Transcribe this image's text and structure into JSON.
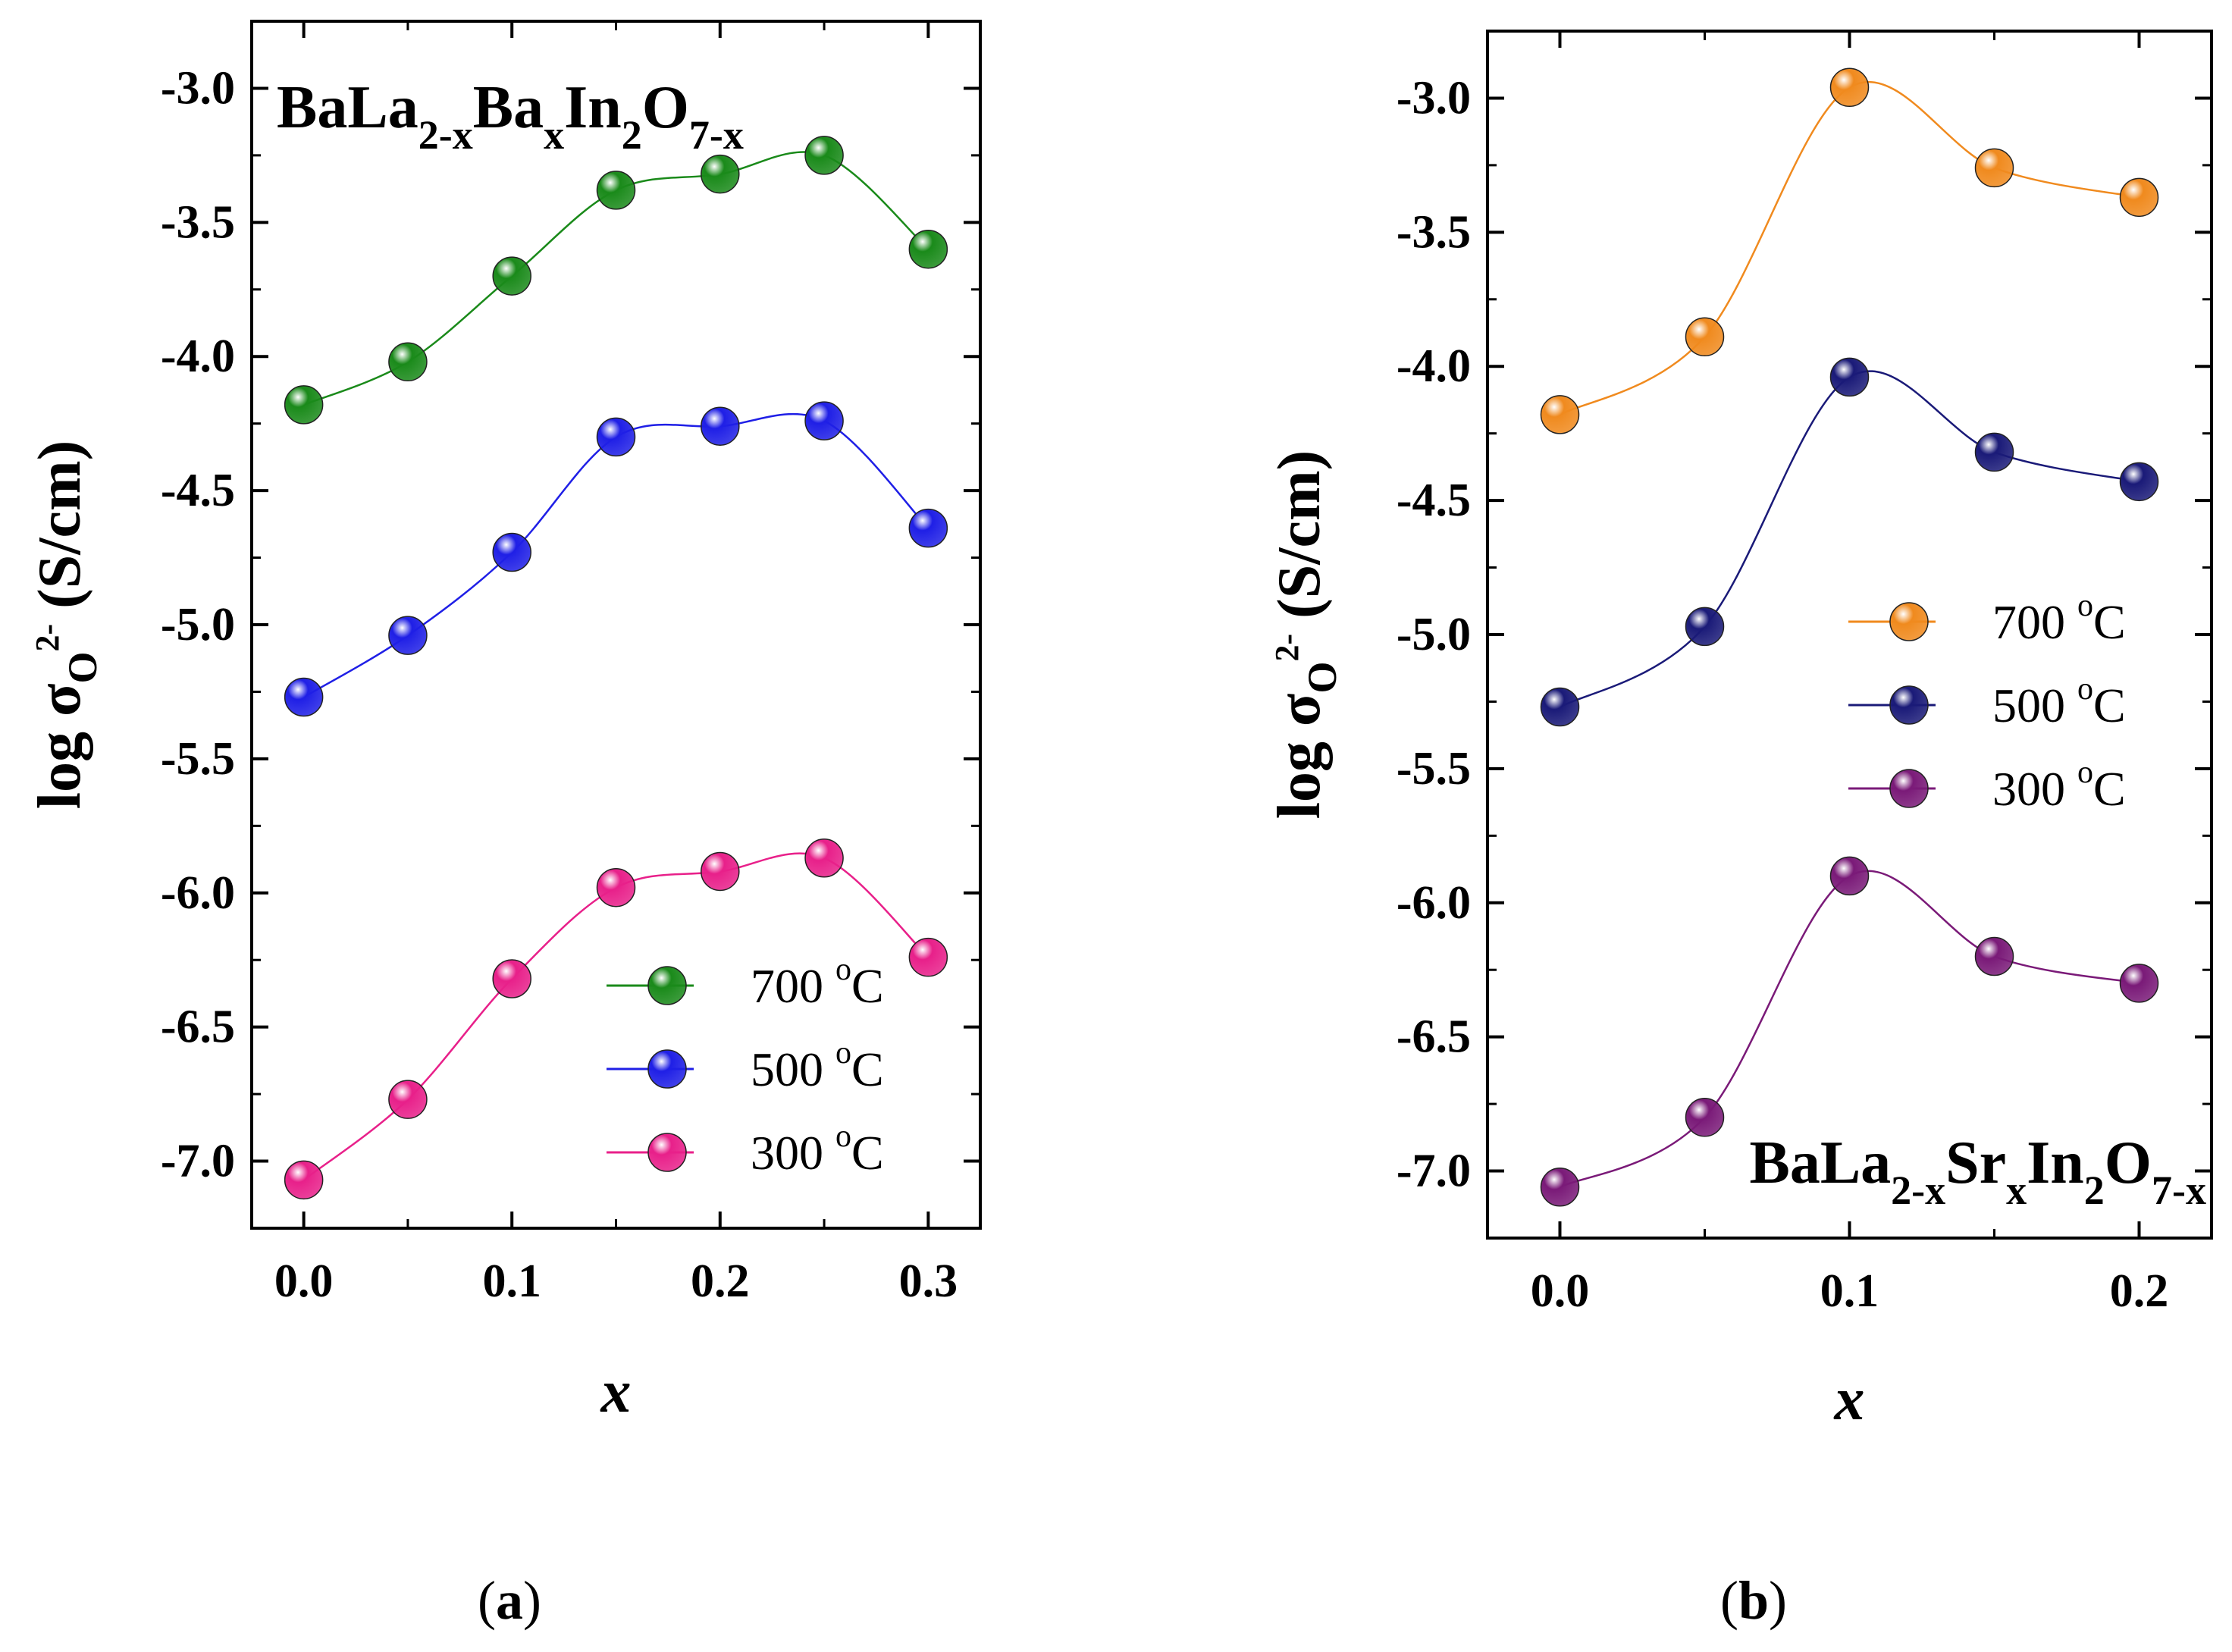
{
  "chart_data": [
    {
      "type": "line",
      "annotation": {
        "main": [
          "BaLa",
          "Ba",
          "In",
          "O"
        ],
        "subs": [
          "2-x",
          "x",
          "2",
          "7-x"
        ]
      },
      "xlabel": "x",
      "ylabel": {
        "main": "log σ",
        "sub": "O",
        "sup": "2-",
        "unit": " (S/cm)"
      },
      "xlim": [
        -0.025,
        0.325
      ],
      "ylim": [
        -7.25,
        -2.75
      ],
      "xticks": [
        "0.0",
        "0.1",
        "0.2",
        "0.3"
      ],
      "yticks": [
        "-3.0",
        "-3.5",
        "-4.0",
        "-4.5",
        "-5.0",
        "-5.5",
        "-6.0",
        "-6.5",
        "-7.0"
      ],
      "legend_position": "bottom-right",
      "x": [
        0.0,
        0.05,
        0.1,
        0.15,
        0.2,
        0.25,
        0.3
      ],
      "series": [
        {
          "name": "700 °C",
          "label": "700",
          "unit": "C",
          "color": "#1a8a1a",
          "values": [
            -4.18,
            -4.02,
            -3.7,
            -3.38,
            -3.32,
            -3.25,
            -3.6
          ]
        },
        {
          "name": "500 °C",
          "label": "500",
          "unit": "C",
          "color": "#1f1fe6",
          "values": [
            -5.27,
            -5.04,
            -4.73,
            -4.3,
            -4.26,
            -4.24,
            -4.64
          ]
        },
        {
          "name": "300 °C",
          "label": "300",
          "unit": "C",
          "color": "#e8208a",
          "values": [
            -7.07,
            -6.77,
            -6.32,
            -5.98,
            -5.92,
            -5.87,
            -6.24
          ]
        }
      ],
      "caption": "(a)"
    },
    {
      "type": "line",
      "annotation": {
        "main": [
          "BaLa",
          "Sr",
          "In",
          "O"
        ],
        "subs": [
          "2-x",
          "x",
          "2",
          "7-x"
        ]
      },
      "xlabel": "x",
      "ylabel": {
        "main": "log σ",
        "sub": "O",
        "sup": "2-",
        "unit": " (S/cm)"
      },
      "xlim": [
        -0.025,
        0.225
      ],
      "ylim": [
        -7.25,
        -2.75
      ],
      "xticks": [
        "0.0",
        "0.1",
        "0.2"
      ],
      "yticks": [
        "-3.0",
        "-3.5",
        "-4.0",
        "-4.5",
        "-5.0",
        "-5.5",
        "-6.0",
        "-6.5",
        "-7.0"
      ],
      "legend_position": "center-right",
      "x": [
        0.0,
        0.05,
        0.1,
        0.15,
        0.2
      ],
      "series": [
        {
          "name": "700 °C",
          "label": "700",
          "unit": "C",
          "color": "#f08a1e",
          "values": [
            -4.18,
            -3.89,
            -2.96,
            -3.26,
            -3.37
          ]
        },
        {
          "name": "500 °C",
          "label": "500",
          "unit": "C",
          "color": "#1a1a78",
          "values": [
            -5.27,
            -4.97,
            -4.04,
            -4.32,
            -4.43
          ]
        },
        {
          "name": "300 °C",
          "label": "300",
          "unit": "C",
          "color": "#7a1a78",
          "values": [
            -7.06,
            -6.8,
            -5.9,
            -6.2,
            -6.3
          ]
        }
      ],
      "caption": "(b)"
    }
  ]
}
